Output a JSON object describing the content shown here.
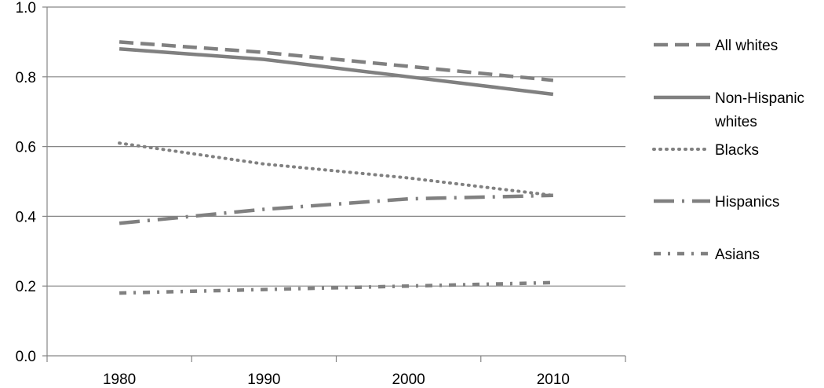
{
  "chart_data": {
    "type": "line",
    "title": "",
    "xlabel": "",
    "ylabel": "",
    "categories": [
      "1980",
      "1990",
      "2000",
      "2010"
    ],
    "ylim": [
      0.0,
      1.0
    ],
    "yticks": [
      "0.0",
      "0.2",
      "0.4",
      "0.6",
      "0.8",
      "1.0"
    ],
    "grid": "horizontal",
    "legend_position": "right",
    "series_color": "#808080",
    "series": [
      {
        "name": "All whites",
        "name_lines": [
          "All whites"
        ],
        "style": "dashed",
        "values": [
          0.9,
          0.87,
          0.83,
          0.79
        ]
      },
      {
        "name": "Non-Hispanic whites",
        "name_lines": [
          "Non-Hispanic",
          "whites"
        ],
        "style": "solid",
        "values": [
          0.88,
          0.85,
          0.8,
          0.75
        ]
      },
      {
        "name": "Blacks",
        "name_lines": [
          "Blacks"
        ],
        "style": "dotted",
        "values": [
          0.61,
          0.55,
          0.51,
          0.46
        ]
      },
      {
        "name": "Hispanics",
        "name_lines": [
          "Hispanics"
        ],
        "style": "long-dash-dot",
        "values": [
          0.38,
          0.42,
          0.45,
          0.46
        ]
      },
      {
        "name": "Asians",
        "name_lines": [
          "Asians"
        ],
        "style": "dash-dot",
        "values": [
          0.18,
          0.19,
          0.2,
          0.21
        ]
      }
    ]
  }
}
